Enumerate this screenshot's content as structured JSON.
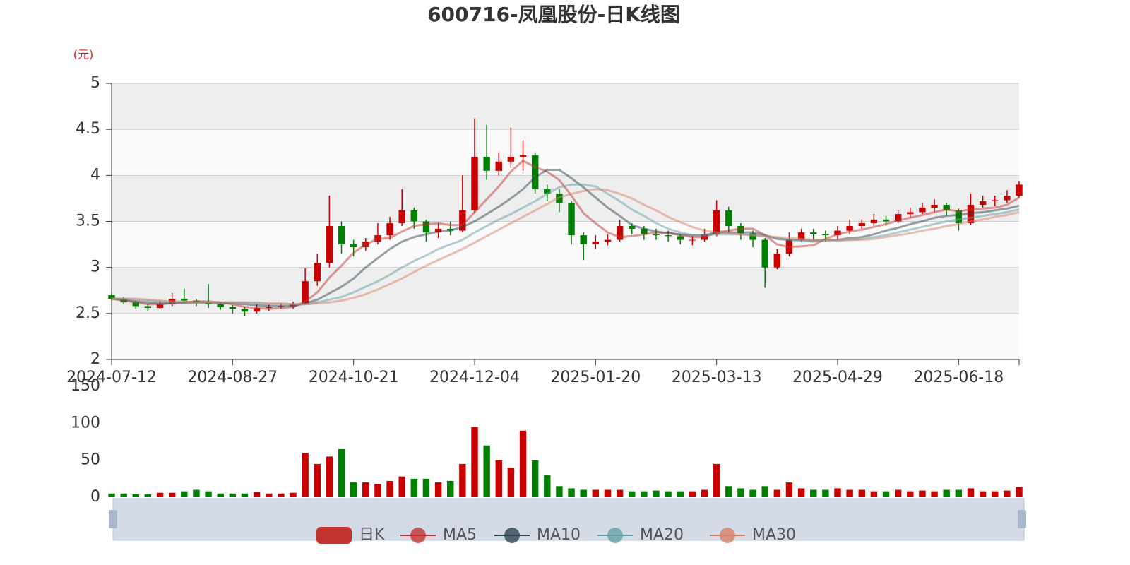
{
  "chart_data": {
    "type": "candlestick",
    "title": "600716-凤凰股份-日K线图",
    "y_unit": "(元)",
    "ylim": [
      2,
      5
    ],
    "yticks": [
      2,
      2.5,
      3,
      3.5,
      4,
      4.5,
      5
    ],
    "grid": true,
    "up_color": "#c80000",
    "down_color": "#008000",
    "categories": [
      "2024-07-12",
      null,
      null,
      null,
      null,
      null,
      null,
      null,
      null,
      null,
      "2024-08-27",
      null,
      null,
      null,
      null,
      null,
      null,
      null,
      null,
      null,
      "2024-10-21",
      null,
      null,
      null,
      null,
      null,
      null,
      null,
      null,
      null,
      "2024-12-04",
      null,
      null,
      null,
      null,
      null,
      null,
      null,
      null,
      null,
      "2025-01-20",
      null,
      null,
      null,
      null,
      null,
      null,
      null,
      null,
      null,
      "2025-03-13",
      null,
      null,
      null,
      null,
      null,
      null,
      null,
      null,
      null,
      "2025-04-29",
      null,
      null,
      null,
      null,
      null,
      null,
      null,
      null,
      null,
      "2025-06-18",
      null,
      null,
      null,
      null,
      null
    ],
    "series": [
      {
        "name": "日K",
        "type": "candlestick",
        "color": "#c23531",
        "values": [
          [
            2.7,
            2.66,
            2.64,
            2.72
          ],
          [
            2.66,
            2.62,
            2.6,
            2.68
          ],
          [
            2.62,
            2.58,
            2.55,
            2.64
          ],
          [
            2.58,
            2.56,
            2.53,
            2.6
          ],
          [
            2.56,
            2.6,
            2.55,
            2.64
          ],
          [
            2.6,
            2.66,
            2.58,
            2.72
          ],
          [
            2.66,
            2.64,
            2.61,
            2.77
          ],
          [
            2.64,
            2.62,
            2.58,
            2.66
          ],
          [
            2.62,
            2.6,
            2.56,
            2.82
          ],
          [
            2.6,
            2.57,
            2.54,
            2.62
          ],
          [
            2.57,
            2.55,
            2.5,
            2.59
          ],
          [
            2.55,
            2.52,
            2.47,
            2.57
          ],
          [
            2.52,
            2.56,
            2.5,
            2.6
          ],
          [
            2.56,
            2.57,
            2.53,
            2.6
          ],
          [
            2.57,
            2.58,
            2.55,
            2.61
          ],
          [
            2.58,
            2.6,
            2.55,
            2.63
          ],
          [
            2.6,
            2.85,
            2.6,
            2.99
          ],
          [
            2.85,
            3.05,
            2.8,
            3.15
          ],
          [
            3.05,
            3.45,
            3.0,
            3.78
          ],
          [
            3.45,
            3.25,
            3.15,
            3.5
          ],
          [
            3.25,
            3.22,
            3.12,
            3.3
          ],
          [
            3.22,
            3.28,
            3.18,
            3.32
          ],
          [
            3.28,
            3.35,
            3.25,
            3.48
          ],
          [
            3.35,
            3.48,
            3.3,
            3.55
          ],
          [
            3.48,
            3.62,
            3.45,
            3.85
          ],
          [
            3.62,
            3.5,
            3.42,
            3.65
          ],
          [
            3.5,
            3.38,
            3.28,
            3.52
          ],
          [
            3.38,
            3.42,
            3.32,
            3.48
          ],
          [
            3.42,
            3.4,
            3.35,
            3.5
          ],
          [
            3.4,
            3.62,
            3.38,
            4.0
          ],
          [
            3.62,
            4.2,
            3.6,
            4.62
          ],
          [
            4.2,
            4.05,
            3.95,
            4.55
          ],
          [
            4.05,
            4.15,
            4.0,
            4.25
          ],
          [
            4.15,
            4.2,
            4.08,
            4.52
          ],
          [
            4.2,
            4.22,
            4.05,
            4.38
          ],
          [
            4.22,
            3.85,
            3.8,
            4.25
          ],
          [
            3.85,
            3.8,
            3.72,
            3.9
          ],
          [
            3.8,
            3.7,
            3.6,
            3.85
          ],
          [
            3.7,
            3.35,
            3.25,
            3.72
          ],
          [
            3.35,
            3.25,
            3.08,
            3.38
          ],
          [
            3.25,
            3.28,
            3.2,
            3.35
          ],
          [
            3.28,
            3.3,
            3.24,
            3.36
          ],
          [
            3.3,
            3.45,
            3.28,
            3.52
          ],
          [
            3.45,
            3.42,
            3.36,
            3.48
          ],
          [
            3.42,
            3.36,
            3.3,
            3.45
          ],
          [
            3.36,
            3.35,
            3.3,
            3.42
          ],
          [
            3.35,
            3.34,
            3.28,
            3.4
          ],
          [
            3.34,
            3.3,
            3.25,
            3.36
          ],
          [
            3.3,
            3.3,
            3.24,
            3.34
          ],
          [
            3.3,
            3.36,
            3.28,
            3.42
          ],
          [
            3.36,
            3.62,
            3.34,
            3.73
          ],
          [
            3.62,
            3.45,
            3.38,
            3.66
          ],
          [
            3.45,
            3.37,
            3.3,
            3.48
          ],
          [
            3.37,
            3.3,
            3.22,
            3.4
          ],
          [
            3.3,
            3.0,
            2.78,
            3.32
          ],
          [
            3.0,
            3.15,
            2.98,
            3.2
          ],
          [
            3.15,
            3.3,
            3.12,
            3.38
          ],
          [
            3.3,
            3.38,
            3.28,
            3.42
          ],
          [
            3.38,
            3.36,
            3.3,
            3.42
          ],
          [
            3.36,
            3.35,
            3.28,
            3.4
          ],
          [
            3.35,
            3.4,
            3.3,
            3.45
          ],
          [
            3.4,
            3.45,
            3.36,
            3.52
          ],
          [
            3.45,
            3.48,
            3.42,
            3.52
          ],
          [
            3.48,
            3.52,
            3.45,
            3.58
          ],
          [
            3.52,
            3.5,
            3.45,
            3.56
          ],
          [
            3.5,
            3.58,
            3.48,
            3.62
          ],
          [
            3.58,
            3.6,
            3.54,
            3.65
          ],
          [
            3.6,
            3.65,
            3.58,
            3.7
          ],
          [
            3.65,
            3.68,
            3.6,
            3.74
          ],
          [
            3.68,
            3.62,
            3.56,
            3.7
          ],
          [
            3.62,
            3.48,
            3.4,
            3.64
          ],
          [
            3.48,
            3.68,
            3.46,
            3.8
          ],
          [
            3.68,
            3.72,
            3.65,
            3.78
          ],
          [
            3.72,
            3.73,
            3.67,
            3.78
          ],
          [
            3.73,
            3.78,
            3.7,
            3.84
          ],
          [
            3.78,
            3.9,
            3.76,
            3.94
          ]
        ]
      },
      {
        "name": "MA5",
        "type": "line",
        "color": "#c23531",
        "values": [
          2.66,
          2.64,
          2.62,
          2.6,
          2.6,
          2.61,
          2.62,
          2.63,
          2.63,
          2.62,
          2.6,
          2.57,
          2.56,
          2.55,
          2.56,
          2.57,
          2.63,
          2.73,
          2.89,
          3.02,
          3.16,
          3.25,
          3.31,
          3.32,
          3.39,
          3.45,
          3.47,
          3.48,
          3.46,
          3.46,
          3.6,
          3.74,
          3.88,
          4.04,
          4.16,
          4.09,
          4.04,
          3.95,
          3.78,
          3.59,
          3.48,
          3.38,
          3.33,
          3.34,
          3.36,
          3.38,
          3.38,
          3.35,
          3.33,
          3.33,
          3.38,
          3.4,
          3.42,
          3.42,
          3.35,
          3.25,
          3.22,
          3.23,
          3.24,
          3.31,
          3.36,
          3.39,
          3.41,
          3.44,
          3.47,
          3.51,
          3.54,
          3.57,
          3.6,
          3.63,
          3.61,
          3.63,
          3.64,
          3.65,
          3.68,
          3.76
        ]
      },
      {
        "name": "MA10",
        "type": "line",
        "color": "#2f4554",
        "values": [
          2.66,
          2.65,
          2.63,
          2.62,
          2.61,
          2.61,
          2.62,
          2.62,
          2.62,
          2.61,
          2.61,
          2.6,
          2.59,
          2.58,
          2.58,
          2.58,
          2.61,
          2.65,
          2.72,
          2.79,
          2.88,
          3.0,
          3.1,
          3.2,
          3.28,
          3.33,
          3.36,
          3.39,
          3.4,
          3.44,
          3.5,
          3.58,
          3.66,
          3.75,
          3.85,
          3.98,
          4.06,
          4.06,
          3.97,
          3.87,
          3.76,
          3.65,
          3.56,
          3.46,
          3.42,
          3.39,
          3.37,
          3.36,
          3.35,
          3.35,
          3.38,
          3.38,
          3.38,
          3.38,
          3.35,
          3.31,
          3.3,
          3.3,
          3.29,
          3.3,
          3.3,
          3.32,
          3.33,
          3.36,
          3.4,
          3.43,
          3.47,
          3.5,
          3.54,
          3.56,
          3.57,
          3.59,
          3.6,
          3.62,
          3.64,
          3.67
        ]
      },
      {
        "name": "MA20",
        "type": "line",
        "color": "#61a0a8",
        "values": [
          2.66,
          2.66,
          2.65,
          2.64,
          2.63,
          2.62,
          2.62,
          2.62,
          2.62,
          2.62,
          2.62,
          2.62,
          2.61,
          2.6,
          2.6,
          2.6,
          2.6,
          2.62,
          2.65,
          2.68,
          2.73,
          2.79,
          2.85,
          2.92,
          3.0,
          3.07,
          3.13,
          3.2,
          3.25,
          3.3,
          3.38,
          3.45,
          3.52,
          3.58,
          3.65,
          3.72,
          3.8,
          3.87,
          3.9,
          3.9,
          3.88,
          3.8,
          3.72,
          3.63,
          3.56,
          3.48,
          3.42,
          3.38,
          3.35,
          3.35,
          3.36,
          3.36,
          3.36,
          3.35,
          3.34,
          3.32,
          3.3,
          3.29,
          3.28,
          3.29,
          3.29,
          3.3,
          3.31,
          3.33,
          3.35,
          3.38,
          3.41,
          3.44,
          3.47,
          3.5,
          3.52,
          3.54,
          3.56,
          3.58,
          3.6,
          3.63
        ]
      },
      {
        "name": "MA30",
        "type": "line",
        "color": "#d48265",
        "values": [
          2.66,
          2.66,
          2.66,
          2.65,
          2.64,
          2.63,
          2.63,
          2.62,
          2.62,
          2.62,
          2.62,
          2.62,
          2.62,
          2.61,
          2.61,
          2.6,
          2.6,
          2.61,
          2.62,
          2.64,
          2.67,
          2.71,
          2.76,
          2.82,
          2.88,
          2.95,
          3.02,
          3.08,
          3.14,
          3.2,
          3.27,
          3.34,
          3.41,
          3.48,
          3.55,
          3.62,
          3.69,
          3.76,
          3.8,
          3.83,
          3.85,
          3.84,
          3.8,
          3.75,
          3.68,
          3.62,
          3.55,
          3.49,
          3.44,
          3.4,
          3.38,
          3.37,
          3.36,
          3.35,
          3.34,
          3.33,
          3.32,
          3.31,
          3.3,
          3.3,
          3.3,
          3.3,
          3.3,
          3.31,
          3.33,
          3.35,
          3.37,
          3.4,
          3.42,
          3.45,
          3.47,
          3.5,
          3.52,
          3.55,
          3.57,
          3.6
        ]
      }
    ],
    "volume": {
      "ylim": [
        0,
        150
      ],
      "yticks": [
        0,
        50,
        100,
        150
      ],
      "values": [
        5,
        5,
        4,
        4,
        6,
        6,
        8,
        10,
        8,
        5,
        5,
        5,
        7,
        5,
        5,
        6,
        60,
        45,
        55,
        65,
        20,
        20,
        18,
        22,
        28,
        25,
        25,
        20,
        22,
        45,
        95,
        70,
        50,
        40,
        90,
        50,
        30,
        15,
        12,
        10,
        10,
        10,
        10,
        8,
        8,
        9,
        8,
        8,
        8,
        10,
        45,
        15,
        12,
        10,
        15,
        10,
        20,
        12,
        10,
        10,
        12,
        10,
        10,
        8,
        8,
        10,
        8,
        9,
        8,
        10,
        10,
        12,
        8,
        8,
        9,
        14
      ]
    }
  }
}
